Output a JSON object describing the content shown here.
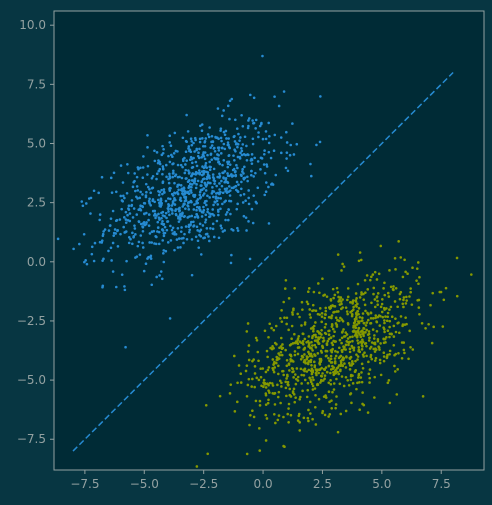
{
  "chart_data": {
    "type": "scatter",
    "title": "",
    "xlabel": "",
    "ylabel": "",
    "xlim": [
      -8.8,
      9.3
    ],
    "ylim": [
      -8.8,
      10.6
    ],
    "grid": false,
    "legend": "none",
    "x_ticks": [
      -7.5,
      -5.0,
      -2.5,
      0.0,
      2.5,
      5.0,
      7.5
    ],
    "x_tick_labels": [
      "−7.5",
      "−5.0",
      "−2.5",
      "0.0",
      "2.5",
      "5.0",
      "7.5"
    ],
    "y_ticks": [
      -7.5,
      -5.0,
      -2.5,
      0.0,
      2.5,
      5.0,
      7.5,
      10.0
    ],
    "y_tick_labels": [
      "−7.5",
      "−5.0",
      "−2.5",
      "0.0",
      "2.5",
      "5.0",
      "7.5",
      "10.0"
    ],
    "series": [
      {
        "kind": "points",
        "color": "#268bd2",
        "n_points": 1000,
        "center": [
          -3.0,
          3.0
        ],
        "spread": [
          1.8,
          1.5
        ],
        "correlation": 0.5,
        "marker": "dot"
      },
      {
        "kind": "points",
        "color": "#859900",
        "n_points": 1000,
        "center": [
          3.0,
          -3.5
        ],
        "spread": [
          1.8,
          1.5
        ],
        "correlation": 0.5,
        "marker": "dot"
      },
      {
        "kind": "line",
        "style": "dashed",
        "color": "#268bd2",
        "x": [
          -8.0,
          8.0
        ],
        "y": [
          -8.0,
          8.0
        ]
      }
    ]
  }
}
